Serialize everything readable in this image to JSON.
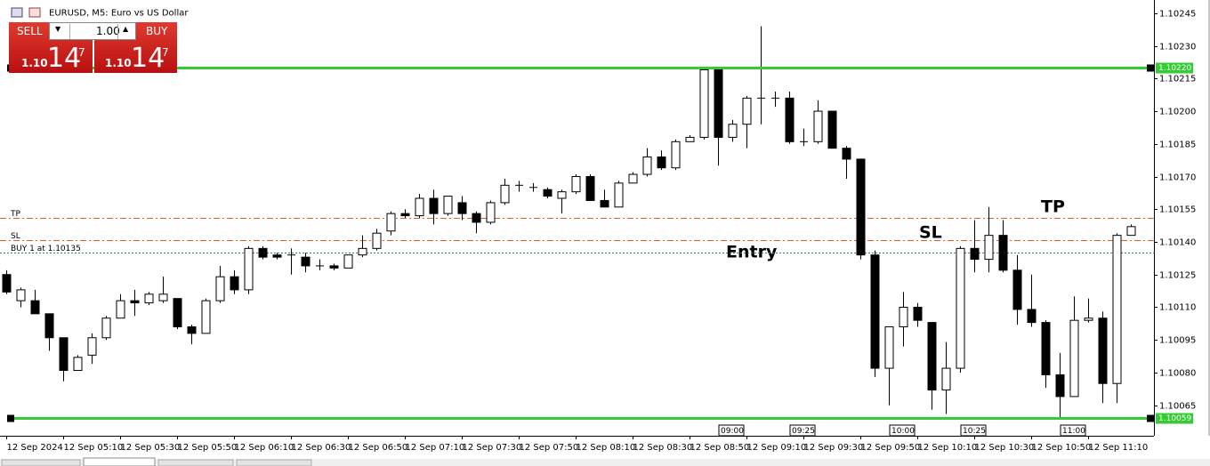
{
  "trade_panel": {
    "sell": "SELL",
    "buy": "BUY",
    "volume": "1.00",
    "sell_price": {
      "big": "1.10",
      "pips": "14",
      "point": "7"
    },
    "buy_price": {
      "big": "1.10",
      "pips": "14",
      "point": "7"
    }
  },
  "chart_data": {
    "type": "candlestick",
    "title": "EURUSD, M5:  Euro vs US Dollar",
    "categories": [
      "12 Sep 2024",
      null,
      null,
      null,
      "12 Sep 05:10",
      null,
      null,
      null,
      "12 Sep 05:30",
      null,
      null,
      null,
      "12 Sep 05:50",
      null,
      null,
      null,
      "12 Sep 06:10",
      null,
      null,
      null,
      "12 Sep 06:30",
      null,
      null,
      null,
      "12 Sep 06:50",
      null,
      null,
      null,
      "12 Sep 07:10",
      null,
      null,
      null,
      "12 Sep 07:30",
      null,
      null,
      null,
      "12 Sep 07:50",
      null,
      null,
      null,
      "12 Sep 08:10",
      null,
      null,
      null,
      "12 Sep 08:30",
      null,
      null,
      null,
      "12 Sep 08:50",
      null,
      null,
      null,
      "12 Sep 09:10",
      null,
      null,
      null,
      "12 Sep 09:30",
      null,
      null,
      null,
      "12 Sep 09:50",
      null,
      null,
      null,
      "12 Sep 10:10",
      null,
      null,
      null,
      "12 Sep 10:30",
      null,
      null,
      null,
      "12 Sep 10:50",
      null,
      null,
      null,
      "12 Sep 11:10",
      null,
      null,
      null
    ],
    "open": [
      1.10125,
      1.10113,
      1.10113,
      1.10107,
      1.10096,
      1.10081,
      1.10088,
      1.10096,
      1.10105,
      1.10113,
      1.10112,
      1.10113,
      1.10114,
      1.10101,
      1.10098,
      1.10113,
      1.10124,
      1.10118,
      1.10137,
      1.10134,
      1.10134,
      1.10133,
      1.10129,
      1.10129,
      1.10128,
      1.10134,
      1.10137,
      1.10145,
      1.10153,
      1.10152,
      1.1016,
      1.10153,
      1.10158,
      1.10153,
      1.10149,
      1.10158,
      1.10166,
      1.10165,
      1.10164,
      1.1016,
      1.10163,
      1.1017,
      1.10159,
      1.10156,
      1.10167,
      1.10171,
      1.10179,
      1.10174,
      1.10186,
      1.10188,
      1.10219,
      1.10188,
      1.10194,
      1.10206,
      1.10206,
      1.10206,
      1.10186,
      1.10186,
      1.102,
      1.10183,
      1.10178,
      1.10134,
      1.10082,
      1.10101,
      1.1011,
      1.10103,
      1.10072,
      1.10082,
      1.10137,
      1.10132,
      1.10143,
      1.10127,
      1.10109,
      1.10103,
      1.10079,
      1.10069,
      1.10104,
      1.10105,
      1.10075,
      1.10143
    ],
    "high": [
      1.10127,
      1.10119,
      1.10118,
      1.10107,
      1.10096,
      1.10088,
      1.10098,
      1.10106,
      1.10116,
      1.10118,
      1.10117,
      1.10124,
      1.10114,
      1.10102,
      1.10114,
      1.10129,
      1.10127,
      1.10138,
      1.10138,
      1.10135,
      1.10137,
      1.10135,
      1.10132,
      1.1013,
      1.10134,
      1.10143,
      1.10146,
      1.10154,
      1.10155,
      1.10162,
      1.10164,
      1.10161,
      1.10161,
      1.10154,
      1.10159,
      1.10169,
      1.10168,
      1.10167,
      1.10165,
      1.10164,
      1.10171,
      1.10171,
      1.10164,
      1.10168,
      1.10172,
      1.10183,
      1.10182,
      1.10187,
      1.10189,
      1.1022,
      1.1022,
      1.10196,
      1.10207,
      1.10239,
      1.10209,
      1.10209,
      1.10192,
      1.10205,
      1.102,
      1.10184,
      1.10178,
      1.10136,
      1.10101,
      1.10117,
      1.10112,
      1.10103,
      1.10094,
      1.10138,
      1.1015,
      1.10156,
      1.1015,
      1.10134,
      1.10125,
      1.10104,
      1.10089,
      1.10115,
      1.10114,
      1.10108,
      1.10144,
      1.10148
    ],
    "low": [
      1.10116,
      1.1011,
      1.10107,
      1.1009,
      1.10076,
      1.10081,
      1.10084,
      1.10095,
      1.10105,
      1.10106,
      1.10111,
      1.10112,
      1.101,
      1.10093,
      1.10098,
      1.10112,
      1.10116,
      1.10116,
      1.10132,
      1.10132,
      1.10125,
      1.10126,
      1.10127,
      1.10127,
      1.10128,
      1.10133,
      1.10136,
      1.10143,
      1.10151,
      1.10151,
      1.10148,
      1.10152,
      1.1015,
      1.10144,
      1.10148,
      1.10157,
      1.10163,
      1.10163,
      1.1016,
      1.10153,
      1.10162,
      1.10159,
      1.10156,
      1.10156,
      1.10167,
      1.1017,
      1.10173,
      1.10173,
      1.10186,
      1.10187,
      1.10175,
      1.10186,
      1.10183,
      1.10194,
      1.10202,
      1.10185,
      1.10184,
      1.10185,
      1.10183,
      1.10169,
      1.10132,
      1.10078,
      1.10065,
      1.10092,
      1.10101,
      1.10063,
      1.10061,
      1.1008,
      1.10126,
      1.10126,
      1.10126,
      1.10102,
      1.10101,
      1.10073,
      1.10059,
      1.10069,
      1.10103,
      1.10066,
      1.10066,
      1.10143
    ],
    "close": [
      1.10117,
      1.10118,
      1.10107,
      1.10096,
      1.10081,
      1.10087,
      1.10096,
      1.10105,
      1.10113,
      1.10112,
      1.10116,
      1.10116,
      1.10101,
      1.10098,
      1.10113,
      1.10124,
      1.10118,
      1.10137,
      1.10133,
      1.10133,
      1.10134,
      1.10129,
      1.10129,
      1.10128,
      1.10134,
      1.10137,
      1.10144,
      1.10153,
      1.10152,
      1.1016,
      1.10153,
      1.10161,
      1.10153,
      1.10149,
      1.10158,
      1.10166,
      1.10166,
      1.10165,
      1.10161,
      1.10163,
      1.1017,
      1.10159,
      1.10156,
      1.10167,
      1.10171,
      1.10179,
      1.10174,
      1.10186,
      1.10188,
      1.10219,
      1.10188,
      1.10194,
      1.10206,
      1.10206,
      1.10206,
      1.10186,
      1.10186,
      1.102,
      1.10183,
      1.10178,
      1.10134,
      1.10082,
      1.10101,
      1.1011,
      1.10104,
      1.10072,
      1.10082,
      1.10137,
      1.10132,
      1.10143,
      1.10127,
      1.10109,
      1.10103,
      1.10079,
      1.10069,
      1.10104,
      1.10105,
      1.10075,
      1.10143,
      1.10147
    ],
    "up_color": "#ffffff",
    "down_color": "#000000",
    "ylim": [
      1.10051,
      1.10249
    ],
    "yticks": [
      1.10245,
      {
        "value": 1.1023,
        "label": "1.10230"
      },
      1.10215,
      {
        "value": 1.102,
        "label": "1.10200"
      },
      1.10185,
      {
        "value": 1.1017,
        "label": "1.10170"
      },
      1.10155,
      {
        "value": 1.1014,
        "label": "1.10140"
      },
      1.10125,
      {
        "value": 1.1011,
        "label": "1.10110"
      },
      1.10095,
      {
        "value": 1.1008,
        "label": "1.10080"
      },
      1.10065
    ],
    "levels": [
      {
        "value": 1.1022,
        "label": "1.10220",
        "color": "#33cc33"
      },
      {
        "value": 1.10059,
        "label": "1.10059",
        "color": "#33cc33"
      }
    ],
    "trade_lines": [
      {
        "name": "TP",
        "value": 1.10151,
        "color": "#e0602a"
      },
      {
        "name": "SL",
        "value": 1.10141,
        "color": "#e0602a"
      },
      {
        "name": "BUY 1 at 1.10135",
        "value": 1.10135,
        "color": "#2a8a4a"
      }
    ],
    "annotations": [
      "Entry",
      "SL",
      "TP"
    ],
    "x_markers": [
      "09:00",
      "09:25",
      "10:00",
      "10:25",
      "11:00"
    ]
  }
}
